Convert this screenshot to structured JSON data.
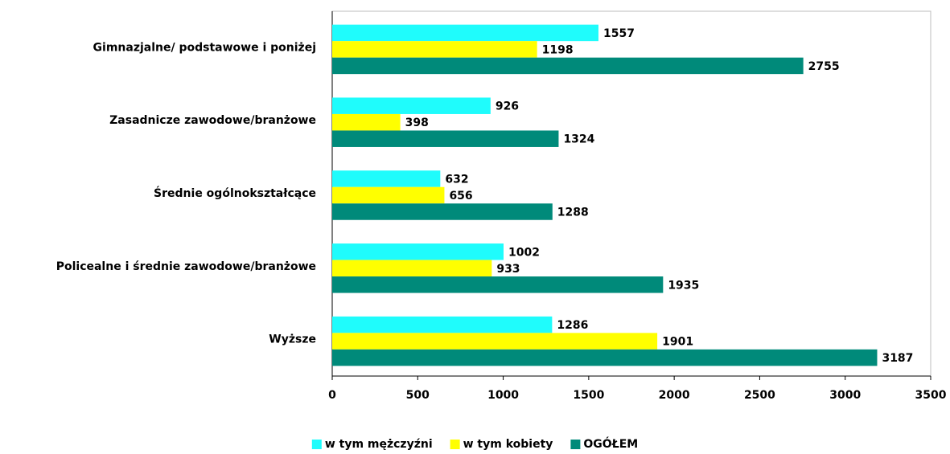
{
  "chart_data": {
    "type": "bar",
    "orientation": "horizontal",
    "categories": [
      "Gimnazjalne/ podstawowe i poniżej",
      "Zasadnicze zawodowe/branżowe",
      "Średnie ogólnokształcące",
      "Policealne i średnie zawodowe/branżowe",
      "Wyższe"
    ],
    "series": [
      {
        "name": "w tym mężczyźni",
        "color": "#1ffcfc",
        "values": [
          1557,
          926,
          632,
          1002,
          1286
        ]
      },
      {
        "name": "w tym kobiety",
        "color": "#ffff00",
        "values": [
          1198,
          398,
          656,
          933,
          1901
        ]
      },
      {
        "name": "OGÓŁEM",
        "color": "#008a7a",
        "values": [
          2755,
          1324,
          1288,
          1935,
          3187
        ]
      }
    ],
    "xlim": [
      0,
      3500
    ],
    "xticks": [
      0,
      500,
      1000,
      1500,
      2000,
      2500,
      3000,
      3500
    ],
    "grid": false,
    "legend": "bottom"
  }
}
